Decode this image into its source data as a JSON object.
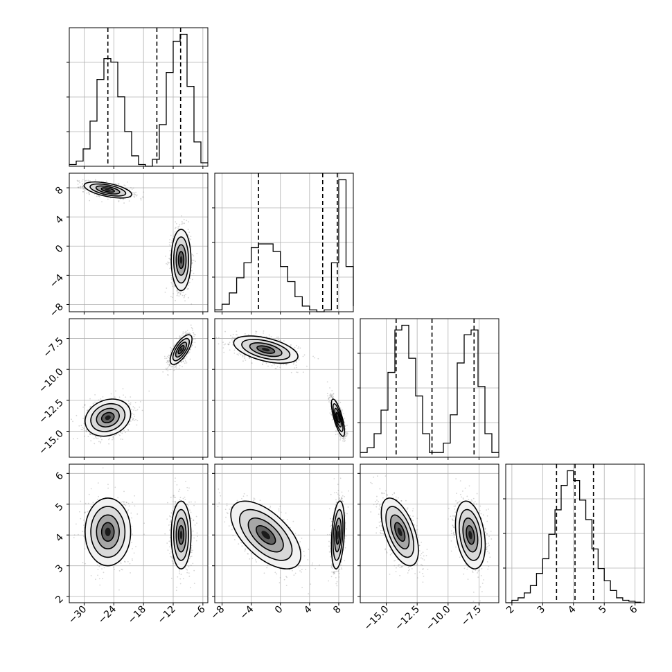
{
  "figure": {
    "type": "corner plot",
    "parameters": 4
  },
  "colors": {
    "line": "#000000",
    "grid": "#b0b0b0",
    "scatter": "#888888",
    "background": "#ffffff"
  },
  "chart_data": {
    "type": "corner",
    "title": "",
    "grid": true,
    "parameters": [
      {
        "label": "",
        "range": [
          -33,
          -5
        ],
        "ticks": [
          -30,
          -24,
          -18,
          -12,
          -6
        ],
        "tick_labels": [
          "−30",
          "−24",
          "−18",
          "−12",
          "−6"
        ],
        "quantiles": [
          -25.2,
          -15.3,
          -10.5
        ],
        "hist": {
          "bins": [
            -33.0,
            -31.6,
            -30.2,
            -28.8,
            -27.4,
            -26.0,
            -24.6,
            -23.2,
            -21.8,
            -20.4,
            -19.0,
            -17.6,
            -16.2,
            -14.8,
            -13.4,
            -12.0,
            -10.6,
            -9.2,
            -7.8,
            -6.4,
            -5.0
          ],
          "counts": [
            0.5,
            1.5,
            5,
            13,
            25,
            31,
            30,
            20,
            10,
            3,
            0.5,
            0,
            2,
            12,
            27,
            36,
            38,
            23,
            7,
            1
          ]
        }
      },
      {
        "label": "",
        "range": [
          -9,
          10
        ],
        "ticks": [
          -8,
          -4,
          0,
          4,
          8
        ],
        "tick_labels": [
          "−8",
          "−4",
          "0",
          "4",
          "8"
        ],
        "quantiles": [
          -3.0,
          5.8,
          7.8
        ],
        "hist": {
          "bins": [
            -9.0,
            -8.0,
            -7.0,
            -6.0,
            -5.0,
            -4.0,
            -3.0,
            -2.0,
            -1.0,
            0.0,
            1.0,
            2.0,
            3.0,
            4.0,
            5.0,
            6.0,
            7.0,
            8.0,
            9.0,
            10.0
          ],
          "counts": [
            0.5,
            2,
            5,
            9,
            13,
            17,
            18,
            18,
            16,
            12,
            8,
            4,
            1.5,
            0.5,
            0,
            0.5,
            13,
            35,
            12,
            1.5
          ]
        }
      },
      {
        "label": "",
        "range": [
          -17.1,
          -5.9
        ],
        "ticks": [
          -15.0,
          -12.5,
          -10.0,
          -7.5
        ],
        "tick_labels": [
          "−15.0",
          "−12.5",
          "−10.0",
          "−7.5"
        ],
        "quantiles": [
          -14.2,
          -11.3,
          -7.9
        ],
        "hist": {
          "bins": [
            -17.1,
            -16.54,
            -15.98,
            -15.42,
            -14.86,
            -14.3,
            -13.74,
            -13.18,
            -12.62,
            -12.06,
            -11.5,
            -10.94,
            -10.38,
            -9.82,
            -9.26,
            -8.7,
            -8.14,
            -7.58,
            -7.02,
            -6.46,
            -5.9
          ],
          "counts": [
            1,
            2,
            5,
            10,
            18,
            27,
            28,
            21,
            13,
            5,
            1,
            1,
            3,
            9,
            20,
            26,
            27,
            15,
            5,
            1
          ]
        }
      },
      {
        "label": "",
        "range": [
          1.8,
          6.3
        ],
        "ticks": [
          2,
          3,
          4,
          5,
          6
        ],
        "tick_labels": [
          "2",
          "3",
          "4",
          "5",
          "6"
        ],
        "quantiles": [
          3.45,
          4.05,
          4.65
        ],
        "hist": {
          "bins": [
            1.8,
            2.0,
            2.2,
            2.4,
            2.6,
            2.8,
            3.0,
            3.2,
            3.4,
            3.6,
            3.8,
            4.0,
            4.2,
            4.4,
            4.6,
            4.8,
            5.0,
            5.2,
            5.4,
            5.6,
            5.8,
            6.0,
            6.2
          ],
          "counts": [
            0,
            0.5,
            1,
            2,
            3.5,
            6,
            9,
            14,
            19,
            24,
            27,
            25,
            21,
            17,
            11,
            7,
            4.5,
            2.5,
            1,
            0.5,
            0.3,
            0.1
          ]
        }
      }
    ],
    "joint_clusters": [
      {
        "x": 0,
        "y": 1,
        "clusters": [
          {
            "mean": [
              -25.2,
              7.7
            ],
            "sd": [
              2.4,
              0.55
            ],
            "corr": -0.55,
            "n": 900
          },
          {
            "mean": [
              -10.4,
              -1.9
            ],
            "sd": [
              1.0,
              2.1
            ],
            "corr": 0.0,
            "n": 900
          }
        ]
      },
      {
        "x": 0,
        "y": 2,
        "clusters": [
          {
            "mean": [
              -25.2,
              -13.9
            ],
            "sd": [
              2.3,
              0.75
            ],
            "corr": 0.2,
            "n": 900
          },
          {
            "mean": [
              -10.4,
              -8.4
            ],
            "sd": [
              1.1,
              0.6
            ],
            "corr": 0.7,
            "n": 900
          }
        ]
      },
      {
        "x": 1,
        "y": 2,
        "clusters": [
          {
            "mean": [
              -2.0,
              -8.4
            ],
            "sd": [
              2.2,
              0.55
            ],
            "corr": -0.5,
            "n": 900
          },
          {
            "mean": [
              7.9,
              -13.9
            ],
            "sd": [
              0.45,
              0.75
            ],
            "corr": -0.75,
            "n": 900
          }
        ]
      },
      {
        "x": 0,
        "y": 3,
        "clusters": [
          {
            "mean": [
              -25.2,
              4.1
            ],
            "sd": [
              2.3,
              0.55
            ],
            "corr": 0.0,
            "n": 900
          },
          {
            "mean": [
              -10.4,
              4.0
            ],
            "sd": [
              1.0,
              0.55
            ],
            "corr": 0.0,
            "n": 900
          }
        ]
      },
      {
        "x": 1,
        "y": 3,
        "clusters": [
          {
            "mean": [
              -2.0,
              4.0
            ],
            "sd": [
              2.4,
              0.55
            ],
            "corr": -0.6,
            "n": 900
          },
          {
            "mean": [
              7.9,
              4.0
            ],
            "sd": [
              0.45,
              0.55
            ],
            "corr": 0.3,
            "n": 900
          }
        ]
      },
      {
        "x": 2,
        "y": 3,
        "clusters": [
          {
            "mean": [
              -13.9,
              4.1
            ],
            "sd": [
              0.75,
              0.55
            ],
            "corr": -0.55,
            "n": 900
          },
          {
            "mean": [
              -8.2,
              4.0
            ],
            "sd": [
              0.6,
              0.55
            ],
            "corr": -0.3,
            "n": 900
          }
        ]
      }
    ]
  }
}
